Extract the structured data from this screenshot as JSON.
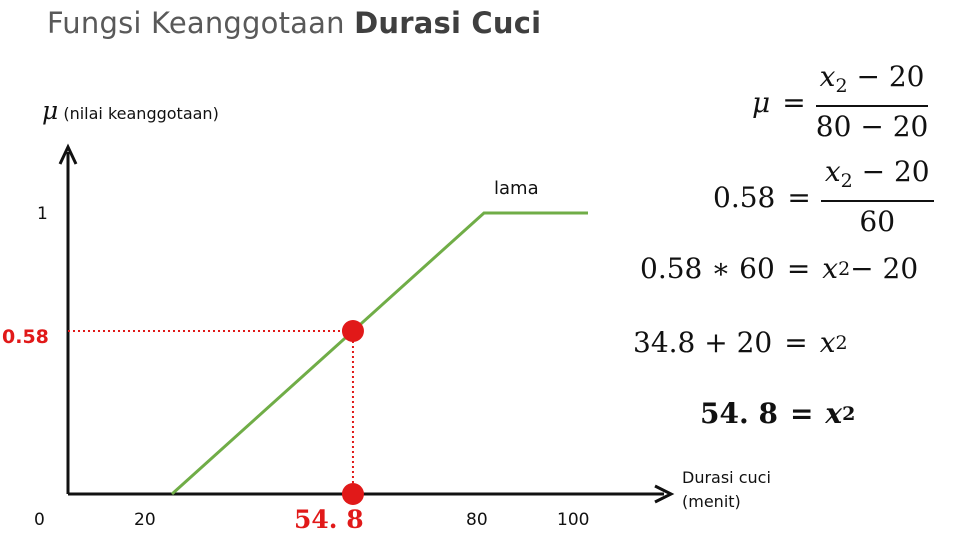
{
  "title": {
    "prefix": "Fungsi Keanggotaan ",
    "emphasis": "Durasi Cuci"
  },
  "chart": {
    "y_symbol": "μ",
    "y_label": "(nilai keanggotaan)",
    "x_label_line1": "Durasi cuci",
    "x_label_line2": "(menit)",
    "curve_label": "lama",
    "y_tick_1": "1",
    "y_tick_058": "0.58",
    "x_tick_0": "0",
    "x_tick_20": "20",
    "x_tick_80": "80",
    "x_tick_100": "100",
    "result_label": "54. 8",
    "line_color": "#70ad47",
    "highlight_color": "#e11919"
  },
  "chart_data": {
    "type": "line",
    "series": [
      {
        "name": "lama",
        "x": [
          20,
          80,
          100
        ],
        "y": [
          0,
          1,
          1
        ]
      }
    ],
    "highlight_points": [
      {
        "x": 54.8,
        "y": 0.58
      },
      {
        "x": 54.8,
        "y": 0
      }
    ],
    "xlim": [
      0,
      115
    ],
    "ylim": [
      0,
      1.3
    ],
    "xlabel": "Durasi cuci (menit)",
    "ylabel": "μ (nilai keanggotaan)",
    "x_ticks": [
      "0",
      "20",
      "54. 8",
      "80",
      "100"
    ],
    "y_ticks": [
      "0.58",
      "1"
    ]
  },
  "equations": {
    "eq1": {
      "lhs": "μ",
      "num_a": "x",
      "num_sub": "2",
      "num_b": " − 20",
      "den": "80 − 20"
    },
    "eq2": {
      "lhs": "0.58",
      "num_a": "x",
      "num_sub": "2",
      "num_b": " − 20",
      "den": "60"
    },
    "eq3": {
      "lhs": "0.58 ∗ 60",
      "rhs_a": "x",
      "rhs_sub": "2",
      "rhs_b": " − 20"
    },
    "eq4": {
      "lhs": "34.8 + 20",
      "rhs_a": "x",
      "rhs_sub": "2"
    },
    "eq5": {
      "lhs": "54. 8",
      "rhs_a": "x",
      "rhs_sub": "2"
    },
    "equals": "="
  }
}
